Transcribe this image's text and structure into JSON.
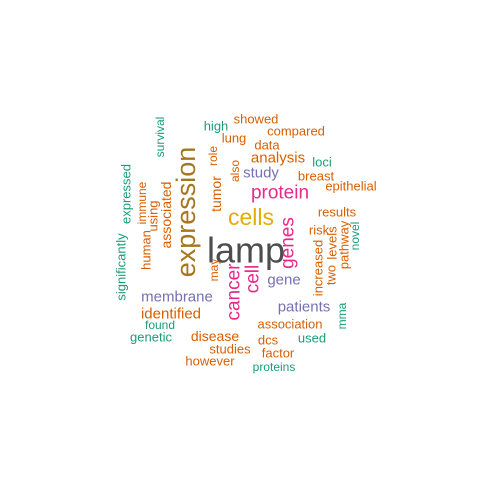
{
  "colors": {
    "gray": "#4d4d4d",
    "brown": "#a6761d",
    "orange": "#d95f02",
    "pink": "#e7298a",
    "purple": "#7570b3",
    "green": "#1b9e77",
    "gold": "#e6ab02"
  },
  "words": [
    {
      "text": "lamp",
      "color": "gray"
    },
    {
      "text": "expression",
      "color": "brown"
    },
    {
      "text": "cells",
      "color": "gold"
    },
    {
      "text": "protein",
      "color": "pink"
    },
    {
      "text": "cancer",
      "color": "pink"
    },
    {
      "text": "cell",
      "color": "pink"
    },
    {
      "text": "genes",
      "color": "pink"
    },
    {
      "text": "analysis",
      "color": "orange"
    },
    {
      "text": "study",
      "color": "purple"
    },
    {
      "text": "gene",
      "color": "purple"
    },
    {
      "text": "patients",
      "color": "purple"
    },
    {
      "text": "membrane",
      "color": "purple"
    },
    {
      "text": "identified",
      "color": "orange"
    },
    {
      "text": "disease",
      "color": "orange"
    },
    {
      "text": "association",
      "color": "orange"
    },
    {
      "text": "tumor",
      "color": "orange"
    },
    {
      "text": "associated",
      "color": "orange"
    },
    {
      "text": "showed",
      "color": "orange"
    },
    {
      "text": "compared",
      "color": "orange"
    },
    {
      "text": "lung",
      "color": "orange"
    },
    {
      "text": "data",
      "color": "orange"
    },
    {
      "text": "high",
      "color": "green"
    },
    {
      "text": "survival",
      "color": "green"
    },
    {
      "text": "expressed",
      "color": "green"
    },
    {
      "text": "significantly",
      "color": "green"
    },
    {
      "text": "immune",
      "color": "orange"
    },
    {
      "text": "using",
      "color": "orange"
    },
    {
      "text": "human",
      "color": "orange"
    },
    {
      "text": "role",
      "color": "orange"
    },
    {
      "text": "also",
      "color": "orange"
    },
    {
      "text": "may",
      "color": "orange"
    },
    {
      "text": "loci",
      "color": "green"
    },
    {
      "text": "breast",
      "color": "orange"
    },
    {
      "text": "epithelial",
      "color": "orange"
    },
    {
      "text": "results",
      "color": "orange"
    },
    {
      "text": "risk",
      "color": "orange"
    },
    {
      "text": "increased",
      "color": "orange"
    },
    {
      "text": "two",
      "color": "orange"
    },
    {
      "text": "levels",
      "color": "orange"
    },
    {
      "text": "pathway",
      "color": "orange"
    },
    {
      "text": "novel",
      "color": "green"
    },
    {
      "text": "mma",
      "color": "green"
    },
    {
      "text": "used",
      "color": "green"
    },
    {
      "text": "found",
      "color": "green"
    },
    {
      "text": "genetic",
      "color": "green"
    },
    {
      "text": "dcs",
      "color": "orange"
    },
    {
      "text": "studies",
      "color": "orange"
    },
    {
      "text": "factor",
      "color": "orange"
    },
    {
      "text": "however",
      "color": "orange"
    },
    {
      "text": "proteins",
      "color": "green"
    }
  ]
}
